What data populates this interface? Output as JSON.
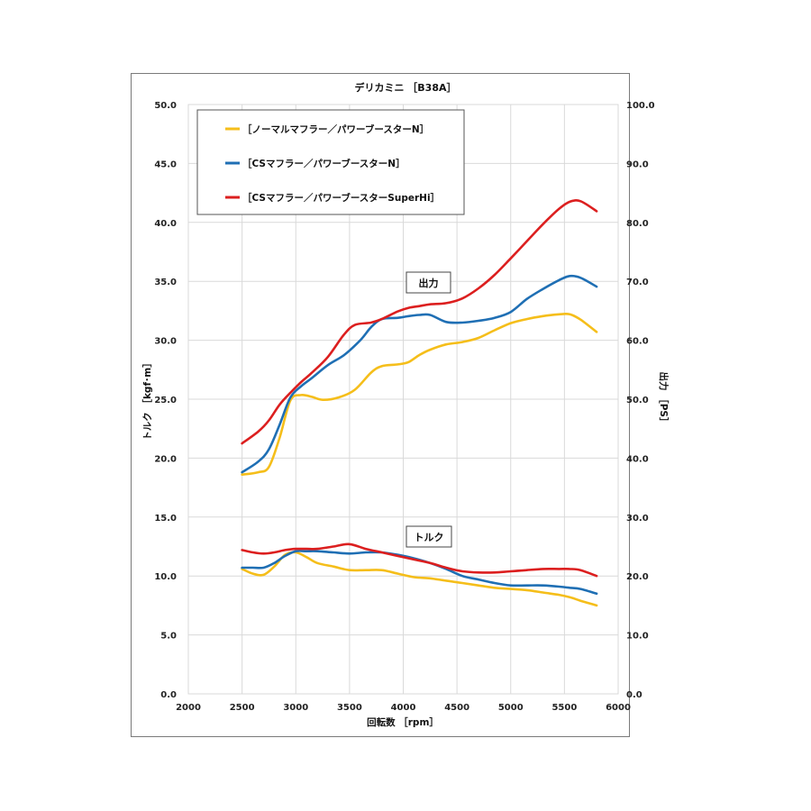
{
  "chart_data": {
    "type": "line",
    "title": "デリカミニ ［B38A］",
    "xlabel": "回転数 ［rpm］",
    "ylabel_left": "トルク ［kgf･m］",
    "ylabel_right": "出力 ［PS］",
    "xlim": [
      2000,
      6000
    ],
    "ylim_left": [
      0,
      50
    ],
    "ylim_right": [
      0,
      100
    ],
    "x_ticks": [
      2000,
      2500,
      3000,
      3500,
      4000,
      4500,
      5000,
      5500,
      6000
    ],
    "x_tick_labels": [
      "2000",
      "2500",
      "3000",
      "3500",
      "4000",
      "4500",
      "5000",
      "5500",
      "6000"
    ],
    "y_left_ticks": [
      0,
      5,
      10,
      15,
      20,
      25,
      30,
      35,
      40,
      45,
      50
    ],
    "y_left_tick_labels": [
      "0.0",
      "5.0",
      "10.0",
      "15.0",
      "20.0",
      "25.0",
      "30.0",
      "35.0",
      "40.0",
      "45.0",
      "50.0"
    ],
    "y_right_tick_labels": [
      "0.0",
      "10.0",
      "20.0",
      "30.0",
      "40.0",
      "50.0",
      "60.0",
      "70.0",
      "80.0",
      "90.0",
      "100.0"
    ],
    "grid": true,
    "legend_position": "top-left",
    "annotations": [
      {
        "text": "出力",
        "x": 4170,
        "y": 35.6
      },
      {
        "text": "トルク",
        "x": 4230,
        "y": 13.2
      }
    ],
    "colors": {
      "normal": "#f5be1a",
      "cs": "#1f6fb4",
      "superhi": "#dc1f1f",
      "grid": "#d9d9d9",
      "frame": "#7a7a7a"
    },
    "series": [
      {
        "name": "［ノーマルマフラー／パワーブースターN］",
        "color_key": "normal",
        "kind": "power",
        "x": [
          2500,
          2650,
          2750,
          2850,
          2950,
          3050,
          3150,
          3250,
          3400,
          3550,
          3700,
          3800,
          3950,
          4050,
          4150,
          4250,
          4400,
          4550,
          4700,
          4850,
          5000,
          5150,
          5300,
          5450,
          5550,
          5650,
          5800
        ],
        "y": [
          37.2,
          37.6,
          38.5,
          43.5,
          49.8,
          50.7,
          50.4,
          49.9,
          50.3,
          51.6,
          54.5,
          55.6,
          55.9,
          56.3,
          57.5,
          58.4,
          59.3,
          59.7,
          60.4,
          61.7,
          62.9,
          63.6,
          64.1,
          64.4,
          64.4,
          63.5,
          61.4
        ]
      },
      {
        "name": "［CSマフラー／パワーブースターN］",
        "color_key": "cs",
        "kind": "power",
        "x": [
          2500,
          2650,
          2750,
          2850,
          2950,
          3050,
          3150,
          3300,
          3450,
          3600,
          3700,
          3800,
          3950,
          4050,
          4150,
          4250,
          4400,
          4550,
          4700,
          4850,
          5000,
          5150,
          5300,
          5450,
          5550,
          5650,
          5800
        ],
        "y": [
          37.6,
          39.4,
          41.5,
          45.7,
          50.3,
          52.2,
          53.6,
          55.8,
          57.5,
          60.0,
          62.2,
          63.6,
          63.8,
          64.1,
          64.3,
          64.3,
          63.1,
          63.0,
          63.3,
          63.8,
          64.8,
          67.0,
          68.7,
          70.2,
          70.9,
          70.6,
          69.1
        ]
      },
      {
        "name": "［CSマフラー／パワーブースターSuperHi］",
        "color_key": "superhi",
        "kind": "power",
        "x": [
          2500,
          2650,
          2750,
          2850,
          2950,
          3050,
          3150,
          3300,
          3450,
          3550,
          3700,
          3800,
          3950,
          4050,
          4150,
          4250,
          4400,
          4550,
          4700,
          4850,
          5000,
          5150,
          5300,
          5450,
          5550,
          5650,
          5800
        ],
        "y": [
          42.5,
          44.5,
          46.4,
          49.1,
          51.1,
          52.9,
          54.5,
          57.2,
          61.0,
          62.6,
          63.0,
          63.6,
          64.9,
          65.5,
          65.8,
          66.1,
          66.3,
          67.1,
          68.8,
          71.1,
          73.9,
          76.8,
          79.7,
          82.3,
          83.5,
          83.6,
          81.9
        ]
      },
      {
        "name": "［ノーマルマフラー／パワーブースターN］",
        "color_key": "normal",
        "kind": "torque",
        "x": [
          2500,
          2600,
          2700,
          2800,
          2900,
          3000,
          3100,
          3200,
          3350,
          3500,
          3650,
          3800,
          3950,
          4100,
          4250,
          4400,
          4550,
          4700,
          4850,
          5000,
          5150,
          5300,
          5450,
          5550,
          5650,
          5800
        ],
        "y": [
          10.6,
          10.2,
          10.1,
          10.8,
          11.8,
          12.0,
          11.6,
          11.1,
          10.8,
          10.5,
          10.5,
          10.5,
          10.2,
          9.9,
          9.8,
          9.6,
          9.4,
          9.2,
          9.0,
          8.9,
          8.8,
          8.6,
          8.4,
          8.2,
          7.9,
          7.5
        ]
      },
      {
        "name": "［CSマフラー／パワーブースターN］",
        "color_key": "cs",
        "kind": "torque",
        "x": [
          2500,
          2600,
          2700,
          2800,
          2900,
          3000,
          3100,
          3200,
          3350,
          3500,
          3650,
          3800,
          3950,
          4100,
          4250,
          4400,
          4550,
          4700,
          4850,
          5000,
          5150,
          5300,
          5450,
          5550,
          5650,
          5800
        ],
        "y": [
          10.7,
          10.7,
          10.7,
          11.1,
          11.7,
          12.1,
          12.1,
          12.1,
          12.0,
          11.9,
          12.0,
          12.0,
          11.8,
          11.5,
          11.1,
          10.6,
          10.0,
          9.7,
          9.4,
          9.2,
          9.2,
          9.2,
          9.1,
          9.0,
          8.9,
          8.5
        ]
      },
      {
        "name": "［CSマフラー／パワーブースターSuperHi］",
        "color_key": "superhi",
        "kind": "torque",
        "x": [
          2500,
          2600,
          2700,
          2800,
          2900,
          3000,
          3100,
          3200,
          3350,
          3500,
          3650,
          3800,
          3950,
          4100,
          4250,
          4400,
          4550,
          4700,
          4850,
          5000,
          5150,
          5300,
          5450,
          5550,
          5650,
          5800
        ],
        "y": [
          12.2,
          12.0,
          11.9,
          12.0,
          12.2,
          12.3,
          12.3,
          12.3,
          12.5,
          12.7,
          12.3,
          12.0,
          11.7,
          11.4,
          11.1,
          10.7,
          10.4,
          10.3,
          10.3,
          10.4,
          10.5,
          10.6,
          10.6,
          10.6,
          10.5,
          10.0
        ]
      }
    ]
  }
}
